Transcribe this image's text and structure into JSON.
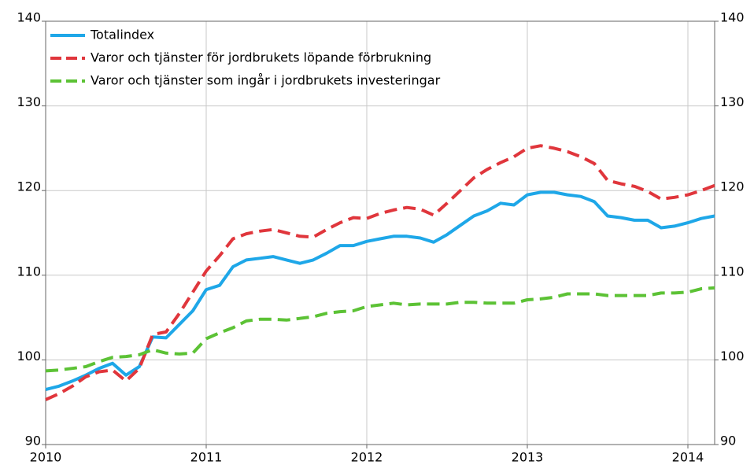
{
  "chart_data": {
    "type": "line",
    "categories": [
      "2010",
      null,
      null,
      null,
      null,
      null,
      null,
      null,
      null,
      null,
      null,
      null,
      "2011",
      null,
      null,
      null,
      null,
      null,
      null,
      null,
      null,
      null,
      null,
      null,
      "2012",
      null,
      null,
      null,
      null,
      null,
      null,
      null,
      null,
      null,
      null,
      null,
      "2013",
      null,
      null,
      null,
      null,
      null,
      null,
      null,
      null,
      null,
      null,
      null,
      "2014",
      null,
      null
    ],
    "series": [
      {
        "name": "Totalindex",
        "color": "#1ea7e8",
        "dashed": false,
        "values": [
          96.5,
          96.9,
          97.5,
          98.2,
          99.0,
          99.6,
          98.2,
          99.2,
          102.7,
          102.6,
          104.2,
          105.8,
          108.3,
          108.8,
          111.0,
          111.8,
          112.0,
          112.2,
          111.8,
          111.4,
          111.8,
          112.6,
          113.5,
          113.5,
          114.0,
          114.3,
          114.6,
          114.6,
          114.4,
          113.9,
          114.8,
          115.9,
          117.0,
          117.6,
          118.5,
          118.3,
          119.5,
          119.8,
          119.8,
          119.5,
          119.3,
          118.7,
          117.0,
          116.8,
          116.5,
          116.5,
          115.6,
          115.8,
          116.2,
          116.7,
          117.0
        ]
      },
      {
        "name": "Varor och tjänster för jordbrukets löpande förbrukning",
        "color": "#e0363c",
        "dashed": true,
        "values": [
          95.3,
          96.0,
          96.9,
          98.0,
          98.6,
          98.8,
          97.5,
          99.0,
          103.0,
          103.3,
          105.5,
          108.0,
          110.5,
          112.3,
          114.3,
          114.9,
          115.2,
          115.4,
          115.0,
          114.6,
          114.5,
          115.4,
          116.2,
          116.8,
          116.7,
          117.3,
          117.7,
          118.0,
          117.8,
          117.1,
          118.5,
          120.0,
          121.5,
          122.5,
          123.3,
          124.0,
          125.0,
          125.3,
          125.0,
          124.6,
          124.0,
          123.2,
          121.2,
          120.8,
          120.5,
          119.9,
          119.0,
          119.2,
          119.5,
          120.0,
          120.6
        ]
      },
      {
        "name": "Varor och tjänster som ingår i jordbrukets investeringar",
        "color": "#5cc235",
        "dashed": true,
        "values": [
          98.7,
          98.8,
          99.0,
          99.2,
          99.8,
          100.3,
          100.4,
          100.6,
          101.2,
          100.8,
          100.7,
          100.8,
          102.5,
          103.2,
          103.8,
          104.6,
          104.8,
          104.8,
          104.7,
          104.9,
          105.1,
          105.5,
          105.7,
          105.8,
          106.3,
          106.5,
          106.7,
          106.5,
          106.6,
          106.6,
          106.6,
          106.8,
          106.8,
          106.7,
          106.7,
          106.7,
          107.1,
          107.2,
          107.4,
          107.8,
          107.8,
          107.8,
          107.6,
          107.6,
          107.6,
          107.6,
          107.9,
          107.9,
          108.0,
          108.4,
          108.5
        ]
      }
    ],
    "ylim": [
      90,
      140
    ],
    "yticks": [
      90,
      100,
      110,
      120,
      130,
      140
    ],
    "y2lim": [
      90,
      140
    ],
    "y2ticks": [
      90,
      100,
      110,
      120,
      130,
      140
    ],
    "grid": true,
    "legend": "top-left"
  }
}
